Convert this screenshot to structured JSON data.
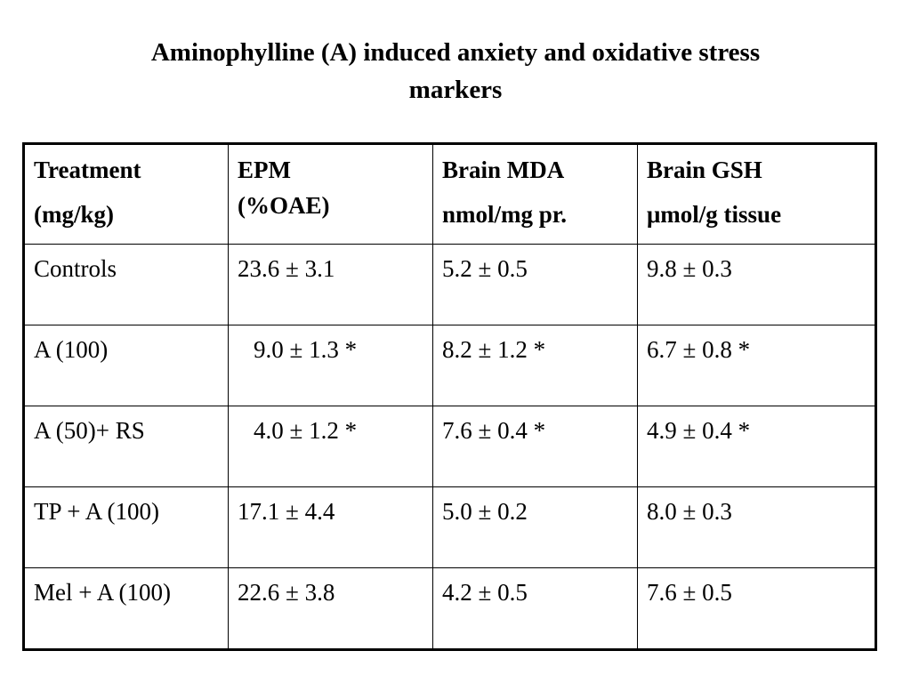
{
  "title": {
    "line1": "Aminophylline (A) induced anxiety and oxidative stress",
    "line2": "markers"
  },
  "table": {
    "headers": [
      {
        "line1": "Treatment",
        "line2": "(mg/kg)"
      },
      {
        "line1": "EPM",
        "line2": "(%OAE)"
      },
      {
        "line1": "Brain MDA",
        "line2": "nmol/mg pr."
      },
      {
        "line1": "Brain GSH",
        "line2": "μmol/g tissue"
      }
    ],
    "rows": [
      [
        "Controls",
        "23.6 ± 3.1",
        "5.2 ± 0.5",
        "9.8 ± 0.3"
      ],
      [
        "A (100)",
        "9.0 ± 1.3 *",
        "8.2 ± 1.2 *",
        "6.7 ± 0.8 *"
      ],
      [
        "A (50)+ RS",
        "4.0 ± 1.2 *",
        "7.6 ± 0.4 *",
        "4.9 ± 0.4 *"
      ],
      [
        "TP + A (100)",
        "17.1 ± 4.4",
        "5.0 ± 0.2",
        "8.0 ± 0.3"
      ],
      [
        "Mel + A (100)",
        "22.6 ± 3.8",
        "4.2 ± 0.5",
        "7.6 ± 0.5"
      ]
    ]
  }
}
